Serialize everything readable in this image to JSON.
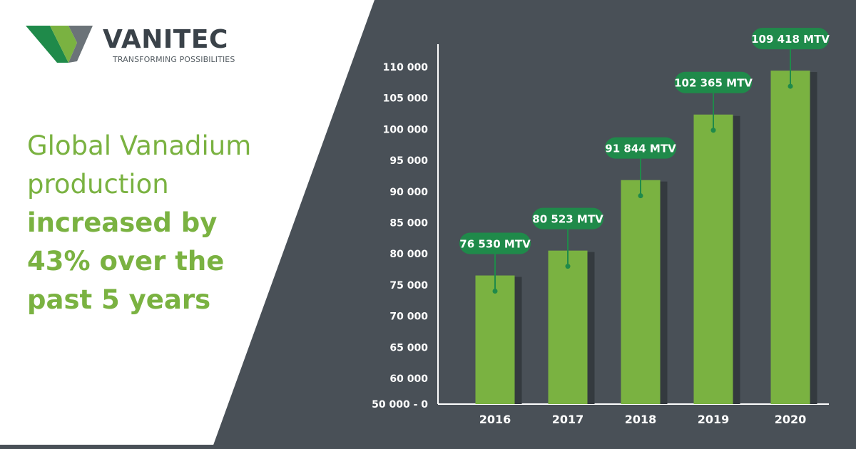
{
  "brand": {
    "name": "VANITEC",
    "tagline": "TRANSFORMING POSSIBILITIES",
    "colors": {
      "green": "#7ab241",
      "dark_green": "#1f8a4a",
      "slate": "#495057",
      "logo_gray": "#3a4249"
    }
  },
  "headline": {
    "line1": "Global Vanadium",
    "line2": "production",
    "line3": "increased by",
    "line4": "43% over the",
    "line5": "past 5 years"
  },
  "chart_data": {
    "type": "bar",
    "title": "",
    "xlabel": "",
    "ylabel": "",
    "categories": [
      "2016",
      "2017",
      "2018",
      "2019",
      "2020"
    ],
    "values": [
      76530,
      80523,
      91844,
      102365,
      109418
    ],
    "data_labels": [
      "76 530 MTV",
      "80 523 MTV",
      "91 844 MTV",
      "102 365 MTV",
      "109 418 MTV"
    ],
    "y_ticks": [
      {
        "value": 50000,
        "label": "50 000 - 0"
      },
      {
        "value": 60000,
        "label": "60 000"
      },
      {
        "value": 65000,
        "label": "65 000"
      },
      {
        "value": 70000,
        "label": "70 000"
      },
      {
        "value": 75000,
        "label": "75 000"
      },
      {
        "value": 80000,
        "label": "80 000"
      },
      {
        "value": 85000,
        "label": "85 000"
      },
      {
        "value": 90000,
        "label": "90 000"
      },
      {
        "value": 95000,
        "label": "95 000"
      },
      {
        "value": 100000,
        "label": "100 000"
      },
      {
        "value": 105000,
        "label": "105 000"
      },
      {
        "value": 110000,
        "label": "110 000"
      }
    ],
    "ylim_display": [
      55000,
      112000
    ],
    "axis_break": "50 000 - 0",
    "grid": false,
    "legend": "none",
    "bar_color": "#7ab241",
    "label_color": "#1f8a4a"
  }
}
